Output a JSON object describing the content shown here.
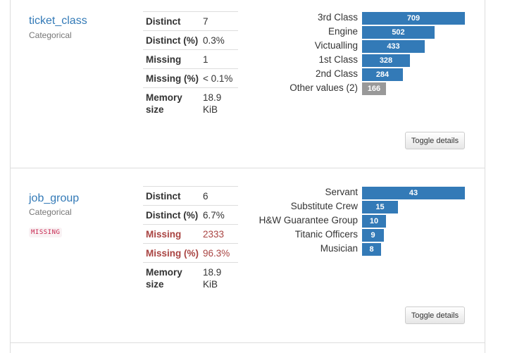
{
  "variables": [
    {
      "name": "ticket_class",
      "type": "Categorical",
      "missing_badge": "",
      "stats": [
        {
          "label": "Distinct",
          "value": "7",
          "alert": false
        },
        {
          "label": "Distinct (%)",
          "value": "0.3%",
          "alert": false
        },
        {
          "label": "Missing",
          "value": "1",
          "alert": false
        },
        {
          "label": "Missing (%)",
          "value": "< 0.1%",
          "alert": false
        },
        {
          "label_line1": "Memory",
          "label_line2": "size",
          "value_line1": "18.9",
          "value_line2": "KiB"
        }
      ],
      "freq": [
        {
          "label": "3rd Class",
          "count": "709",
          "value": 709
        },
        {
          "label": "Engine",
          "count": "502",
          "value": 502
        },
        {
          "label": "Victualling",
          "count": "433",
          "value": 433
        },
        {
          "label": "1st Class",
          "count": "328",
          "value": 328
        },
        {
          "label": "2nd Class",
          "count": "284",
          "value": 284
        },
        {
          "label": "Other values (2)",
          "count": "166",
          "value": 166,
          "other": true
        }
      ],
      "toggle_label": "Toggle details"
    },
    {
      "name": "job_group",
      "type": "Categorical",
      "missing_badge": "MISSING",
      "stats": [
        {
          "label": "Distinct",
          "value": "6",
          "alert": false
        },
        {
          "label": "Distinct (%)",
          "value": "6.7%",
          "alert": false
        },
        {
          "label": "Missing",
          "value": "2333",
          "alert": true
        },
        {
          "label": "Missing (%)",
          "value": "96.3%",
          "alert": true
        },
        {
          "label_line1": "Memory",
          "label_line2": "size",
          "value_line1": "18.9",
          "value_line2": "KiB"
        }
      ],
      "freq": [
        {
          "label": "Servant",
          "count": "43",
          "value": 43
        },
        {
          "label": "Substitute Crew",
          "count": "15",
          "value": 15
        },
        {
          "label": "H&W Guarantee Group",
          "count": "10",
          "value": 10
        },
        {
          "label": "Titanic Officers",
          "count": "9",
          "value": 9
        },
        {
          "label": "Musician",
          "count": "8",
          "value": 8
        }
      ],
      "toggle_label": "Toggle details"
    }
  ],
  "colors": {
    "bar": "#337ab7",
    "bar_other": "#999999",
    "link": "#337ab7",
    "alert": "#a94442"
  }
}
